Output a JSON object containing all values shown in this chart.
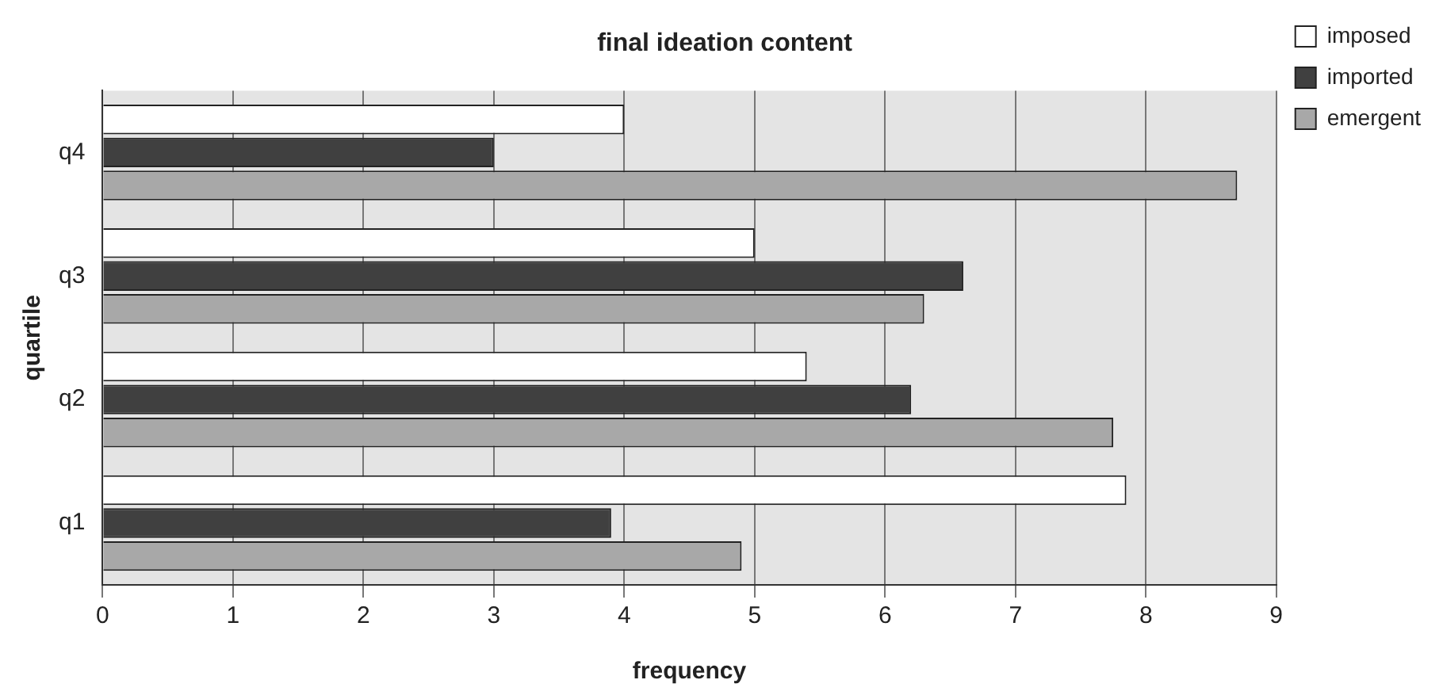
{
  "chart_data": {
    "type": "bar",
    "orientation": "horizontal",
    "title": "final ideation content",
    "xlabel": "frequency",
    "ylabel": "quartile",
    "categories": [
      "q4",
      "q3",
      "q2",
      "q1"
    ],
    "series": [
      {
        "name": "imposed",
        "color": "#ffffff",
        "values": [
          4,
          5,
          5.4,
          7.85
        ]
      },
      {
        "name": "imported",
        "color": "#404040",
        "values": [
          3,
          6.6,
          6.2,
          3.9
        ]
      },
      {
        "name": "emergent",
        "color": "#a8a8a8",
        "values": [
          8.7,
          6.3,
          7.75,
          4.9
        ]
      }
    ],
    "xlim": [
      0,
      9
    ],
    "xticks": [
      0,
      1,
      2,
      3,
      4,
      5,
      6,
      7,
      8,
      9
    ],
    "grid": "x",
    "legend": "top right"
  }
}
